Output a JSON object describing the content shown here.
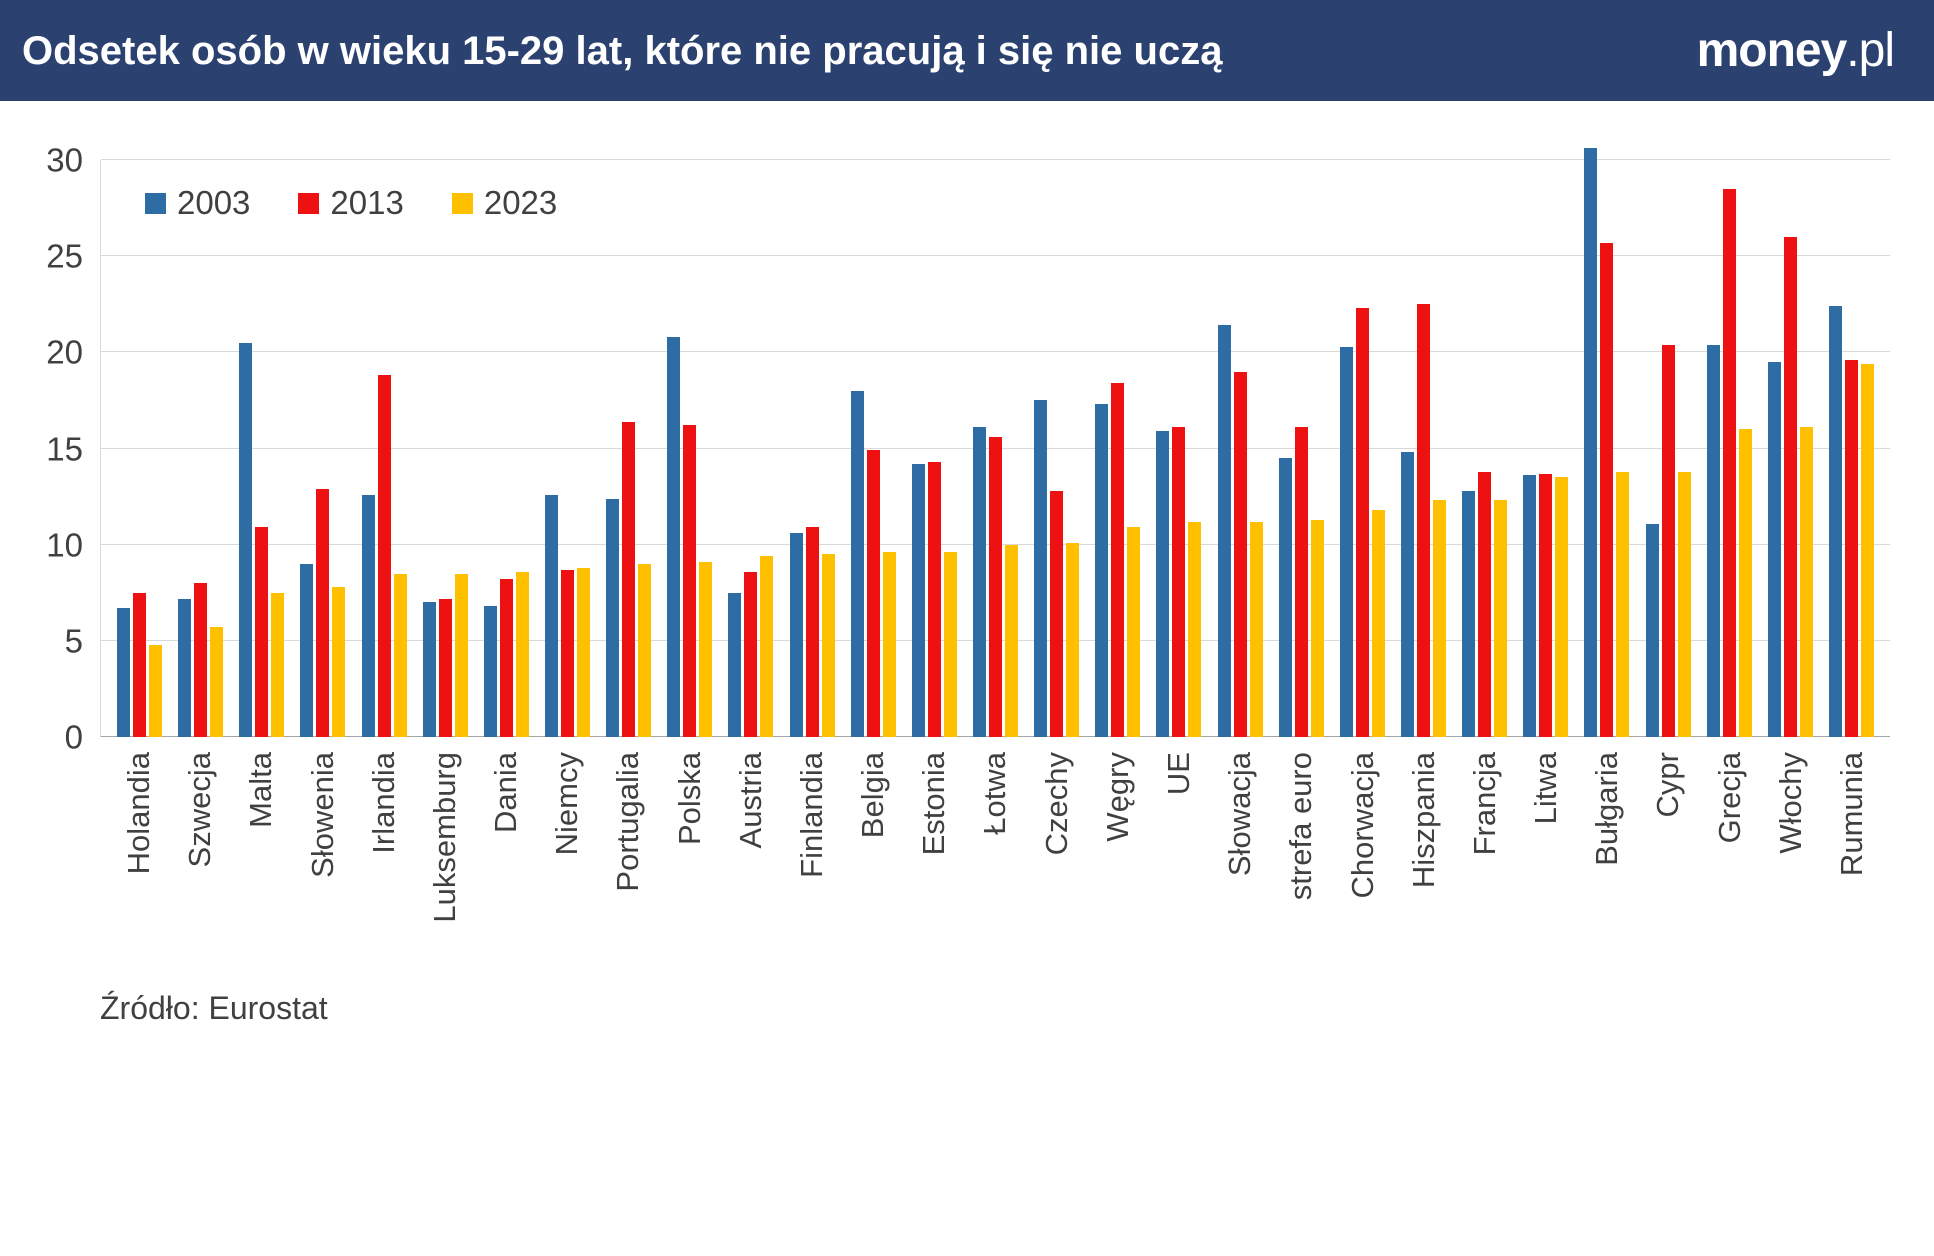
{
  "header": {
    "title": "Odsetek osób w wieku 15-29 lat, które nie pracują i się nie uczą",
    "logo": {
      "bold": "money",
      "rest": ".pl"
    }
  },
  "source_note": "Źródło: Eurostat",
  "colors": {
    "header_bg": "#2b4170",
    "grid": "#d9d9d9",
    "axis": "#a6a6a6",
    "text": "#404040"
  },
  "chart_data": {
    "type": "bar",
    "title": "Odsetek osób w wieku 15-29 lat, które nie pracują i się nie uczą",
    "xlabel": "",
    "ylabel": "",
    "ylim": [
      0,
      30
    ],
    "yticks": [
      0,
      5,
      10,
      15,
      20,
      25,
      30
    ],
    "grid": true,
    "legend_position": "top-left",
    "categories": [
      "Holandia",
      "Szwecja",
      "Malta",
      "Słowenia",
      "Irlandia",
      "Luksemburg",
      "Dania",
      "Niemcy",
      "Portugalia",
      "Polska",
      "Austria",
      "Finlandia",
      "Belgia",
      "Estonia",
      "Łotwa",
      "Czechy",
      "Węgry",
      "UE",
      "Słowacja",
      "strefa euro",
      "Chorwacja",
      "Hiszpania",
      "Francja",
      "Litwa",
      "Bułgaria",
      "Cypr",
      "Grecja",
      "Włochy",
      "Rumunia"
    ],
    "series": [
      {
        "name": "2003",
        "color": "#2e6da4",
        "values": [
          6.7,
          7.2,
          20.5,
          9.0,
          12.6,
          7.0,
          6.8,
          12.6,
          12.4,
          20.8,
          7.5,
          10.6,
          18.0,
          14.2,
          16.1,
          17.5,
          17.3,
          15.9,
          21.4,
          14.5,
          20.3,
          14.8,
          12.8,
          13.6,
          30.6,
          11.1,
          20.4,
          19.5,
          22.4
        ]
      },
      {
        "name": "2013",
        "color": "#ee1111",
        "values": [
          7.5,
          8.0,
          10.9,
          12.9,
          18.8,
          7.2,
          8.2,
          8.7,
          16.4,
          16.2,
          8.6,
          10.9,
          14.9,
          14.3,
          15.6,
          12.8,
          18.4,
          16.1,
          19.0,
          16.1,
          22.3,
          22.5,
          13.8,
          13.7,
          25.7,
          20.4,
          28.5,
          26.0,
          19.6
        ]
      },
      {
        "name": "2023",
        "color": "#ffc000",
        "values": [
          4.8,
          5.7,
          7.5,
          7.8,
          8.5,
          8.5,
          8.6,
          8.8,
          9.0,
          9.1,
          9.4,
          9.5,
          9.6,
          9.6,
          10.0,
          10.1,
          10.9,
          11.2,
          11.2,
          11.3,
          11.8,
          12.3,
          12.3,
          13.5,
          13.8,
          13.8,
          16.0,
          16.1,
          19.4
        ]
      }
    ]
  }
}
